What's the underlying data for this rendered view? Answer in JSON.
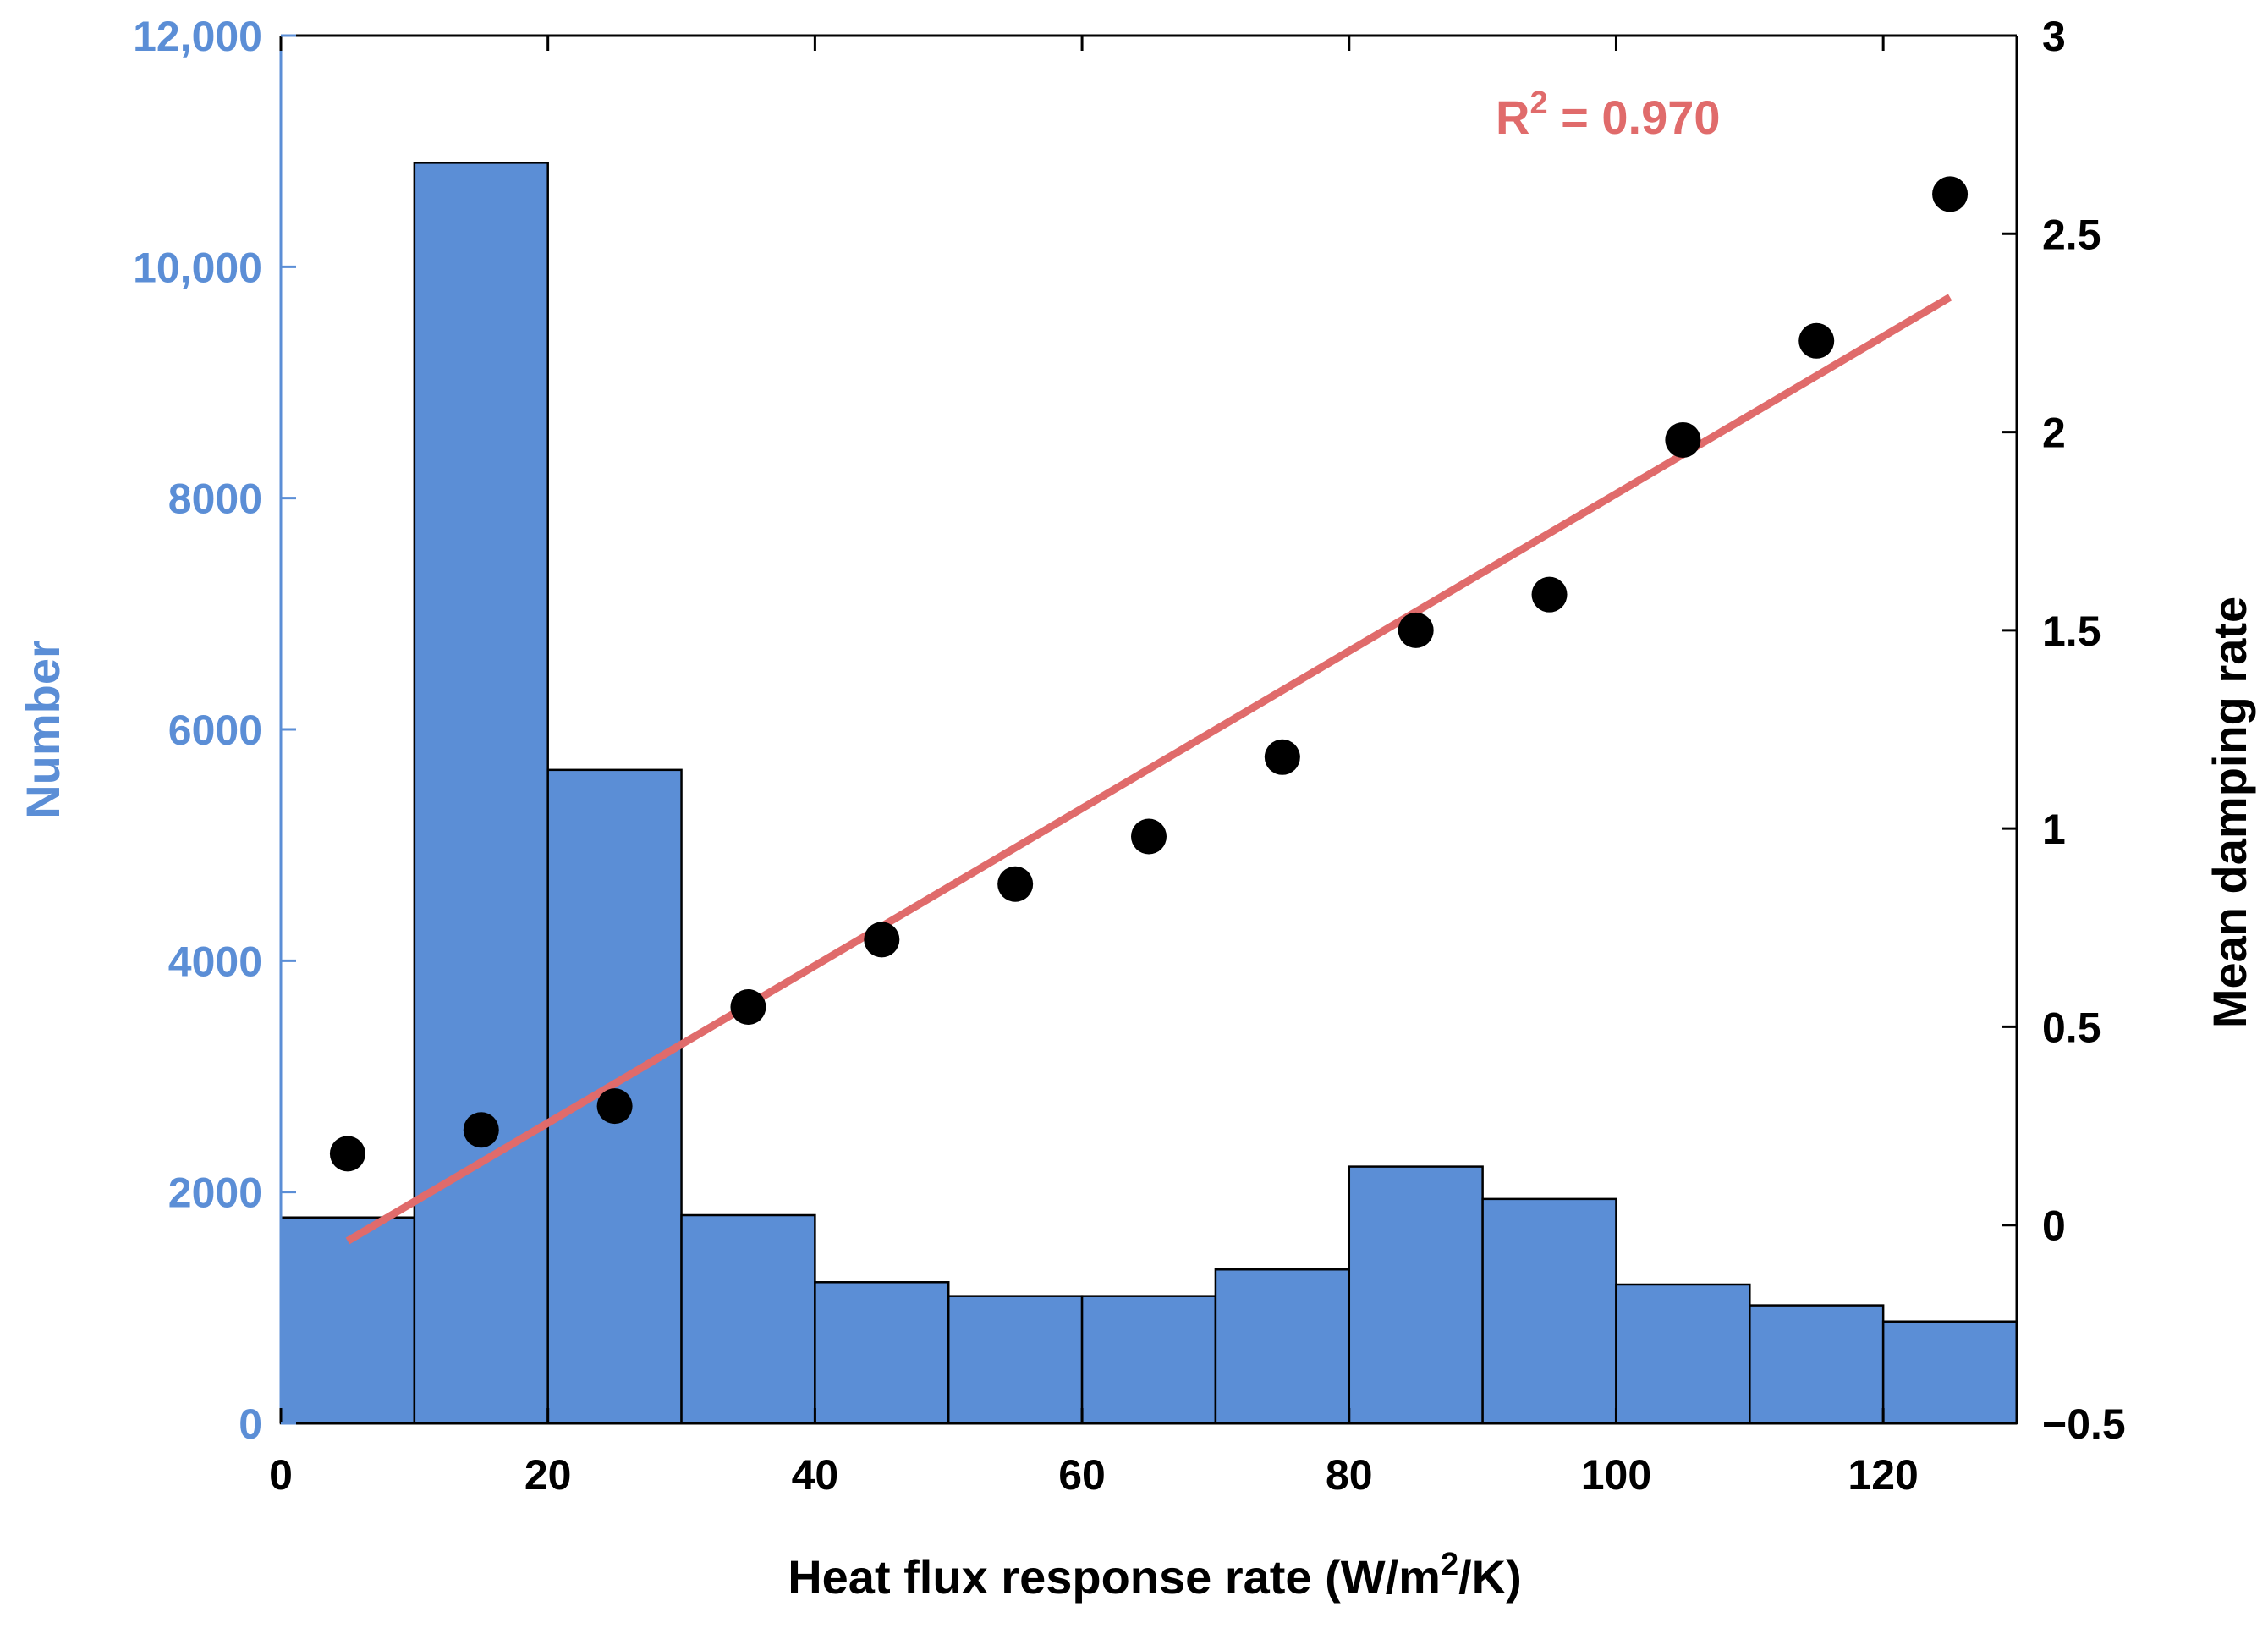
{
  "chart_data": {
    "type": "bar+scatter",
    "xlabel": {
      "main": "Heat flux response rate (W/m",
      "sup": "2",
      "tail": "/K)"
    },
    "ylabel_left": "Number",
    "ylabel_right": "Mean damping rate",
    "xlim": [
      0,
      130
    ],
    "ylim_left": [
      0,
      12000
    ],
    "ylim_right": [
      -0.5,
      3
    ],
    "x_ticks": [
      "0",
      "20",
      "40",
      "60",
      "80",
      "100",
      "120"
    ],
    "y_left_ticks": [
      "0",
      "2000",
      "4000",
      "6000",
      "8000",
      "10,000",
      "12,000"
    ],
    "y_right_ticks": [
      "−0.5",
      "0",
      "0.5",
      "1",
      "1.5",
      "2",
      "2.5",
      "3"
    ],
    "histogram": {
      "bin_edges": [
        0,
        10,
        20,
        30,
        40,
        50,
        60,
        70,
        80,
        90,
        100,
        110,
        120,
        130
      ],
      "counts": [
        1780,
        10900,
        5650,
        1800,
        1220,
        1100,
        1100,
        1330,
        2220,
        1940,
        1200,
        1020,
        880
      ],
      "color": "#5b8ed6"
    },
    "scatter": {
      "x": [
        5,
        15,
        25,
        35,
        45,
        55,
        65,
        75,
        85,
        95,
        105,
        115,
        125
      ],
      "y": [
        0.18,
        0.24,
        0.3,
        0.55,
        0.72,
        0.86,
        0.98,
        1.18,
        1.5,
        1.59,
        1.98,
        2.23,
        2.6
      ],
      "color": "#000000"
    },
    "fit_line": {
      "x": [
        5,
        125
      ],
      "y": [
        -0.04,
        2.34
      ],
      "color": "#e06b6b"
    },
    "annotation": {
      "prefix": "R",
      "sup": "2",
      "text": " = 0.970",
      "color": "#e06b6b"
    },
    "colors": {
      "left_axis": "#5b8ed6",
      "right_axis": "#000000"
    }
  }
}
